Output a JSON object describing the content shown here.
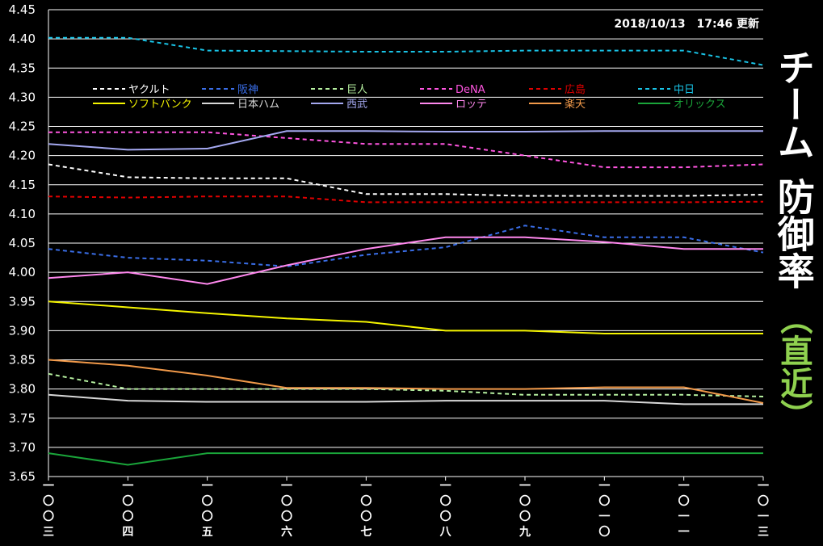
{
  "updated_label": "2018/10/13　17:46 更新",
  "side_title": {
    "line1": "チーム",
    "line2": "防御率",
    "sub": "（直近）"
  },
  "chart_data": {
    "type": "line",
    "title": "チーム防御率（直近）",
    "x": [
      "一〇〇三",
      "一〇〇四",
      "一〇〇五",
      "一〇〇六",
      "一〇〇七",
      "一〇〇八",
      "一〇〇九",
      "一〇一〇",
      "一〇一一",
      "一〇一三"
    ],
    "ylim": [
      3.65,
      4.45
    ],
    "yticks": [
      "3.65",
      "3.70",
      "3.75",
      "3.80",
      "3.85",
      "3.90",
      "3.95",
      "4.00",
      "4.05",
      "4.10",
      "4.15",
      "4.20",
      "4.25",
      "4.30",
      "4.35",
      "4.40",
      "4.45"
    ],
    "grid": true,
    "legend_position": "top-left",
    "series": [
      {
        "name": "ヤクルト",
        "color": "#ffffff",
        "dash": true,
        "values": [
          4.185,
          4.163,
          4.161,
          4.161,
          4.134,
          4.134,
          4.131,
          4.131,
          4.131,
          4.133
        ]
      },
      {
        "name": "阪神",
        "color": "#3a6ee8",
        "dash": true,
        "values": [
          4.04,
          4.025,
          4.02,
          4.01,
          4.03,
          4.043,
          4.08,
          4.06,
          4.06,
          4.034
        ]
      },
      {
        "name": "巨人",
        "color": "#b6f0a0",
        "dash": true,
        "values": [
          3.826,
          3.8,
          3.8,
          3.8,
          3.8,
          3.797,
          3.79,
          3.79,
          3.79,
          3.787
        ]
      },
      {
        "name": "DeNA",
        "color": "#ff55e0",
        "dash": true,
        "values": [
          4.24,
          4.24,
          4.24,
          4.23,
          4.22,
          4.22,
          4.2,
          4.18,
          4.18,
          4.185
        ]
      },
      {
        "name": "広島",
        "color": "#e00000",
        "dash": true,
        "values": [
          4.13,
          4.128,
          4.13,
          4.13,
          4.12,
          4.12,
          4.12,
          4.12,
          4.12,
          4.121
        ]
      },
      {
        "name": "中日",
        "color": "#19c3e6",
        "dash": true,
        "values": [
          4.402,
          4.402,
          4.38,
          4.379,
          4.378,
          4.378,
          4.38,
          4.38,
          4.38,
          4.355
        ]
      },
      {
        "name": "ソフトバンク",
        "color": "#f5f500",
        "dash": false,
        "values": [
          3.95,
          3.94,
          3.93,
          3.921,
          3.915,
          3.9,
          3.9,
          3.895,
          3.895,
          3.895
        ]
      },
      {
        "name": "日本ハム",
        "color": "#d8d8d8",
        "dash": false,
        "values": [
          3.79,
          3.78,
          3.778,
          3.778,
          3.778,
          3.78,
          3.78,
          3.78,
          3.774,
          3.774
        ]
      },
      {
        "name": "西武",
        "color": "#a4a8f0",
        "dash": false,
        "values": [
          4.22,
          4.21,
          4.212,
          4.242,
          4.242,
          4.241,
          4.241,
          4.242,
          4.242,
          4.242
        ]
      },
      {
        "name": "ロッテ",
        "color": "#ff88ee",
        "dash": false,
        "values": [
          3.99,
          4.0,
          3.98,
          4.012,
          4.04,
          4.06,
          4.06,
          4.052,
          4.04,
          4.04
        ]
      },
      {
        "name": "楽天",
        "color": "#f29a4a",
        "dash": false,
        "values": [
          3.85,
          3.84,
          3.823,
          3.802,
          3.802,
          3.8,
          3.8,
          3.803,
          3.803,
          3.776
        ]
      },
      {
        "name": "オリックス",
        "color": "#1aa53a",
        "dash": false,
        "values": [
          3.69,
          3.67,
          3.69,
          3.69,
          3.69,
          3.69,
          3.69,
          3.69,
          3.69,
          3.69
        ]
      }
    ]
  }
}
